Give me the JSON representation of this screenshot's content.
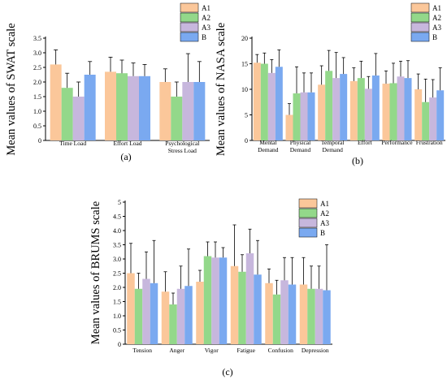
{
  "colors": {
    "A1": "#fbc79a",
    "A2": "#93d88a",
    "A3": "#c7b7dd",
    "B": "#7aa9f0",
    "axis": "#000000",
    "errorbar": "#000000"
  },
  "chart_data": [
    {
      "type": "bar",
      "panel": "(a)",
      "ylabel": "Mean values of  SWAT scale",
      "ylim": [
        0,
        3.5
      ],
      "yticks": [
        "0",
        "0.5",
        "1.0",
        "1.5",
        "2.0",
        "2.5",
        "3.0",
        "3.5"
      ],
      "categories": [
        "Time Load",
        "Effort Load",
        "Psychological\nStress Load"
      ],
      "legend": [
        "A1",
        "A2",
        "A3",
        "B"
      ],
      "legend_position": "top-right",
      "grid": false,
      "series": [
        {
          "name": "A1",
          "values": [
            2.6,
            2.35,
            2.0
          ],
          "errors": [
            0.5,
            0.5,
            0.45
          ]
        },
        {
          "name": "A2",
          "values": [
            1.8,
            2.3,
            1.5
          ],
          "errors": [
            0.5,
            0.45,
            0.5
          ]
        },
        {
          "name": "A3",
          "values": [
            1.5,
            2.2,
            2.0
          ],
          "errors": [
            0.5,
            0.45,
            0.97
          ]
        },
        {
          "name": "B",
          "values": [
            2.25,
            2.2,
            2.0
          ],
          "errors": [
            0.45,
            0.4,
            0.7
          ]
        }
      ]
    },
    {
      "type": "bar",
      "panel": "(b)",
      "ylabel": "Mean values of  NASA scale",
      "ylim": [
        0,
        20
      ],
      "yticks": [
        "0",
        "5",
        "10",
        "15",
        "20"
      ],
      "categories": [
        "Mental\nDemand",
        "Physical\nDemand",
        "Temporal\nDemand",
        "Effort",
        "Performance",
        "Frustration"
      ],
      "legend": [
        "A1",
        "A2",
        "A3",
        "B"
      ],
      "legend_position": "top-right",
      "grid": false,
      "series": [
        {
          "name": "A1",
          "values": [
            15.2,
            5.0,
            10.9,
            11.6,
            11.1,
            10.0
          ],
          "errors": [
            1.6,
            2.2,
            3.7,
            2.6,
            2.5,
            3.0
          ]
        },
        {
          "name": "A2",
          "values": [
            15.0,
            9.2,
            13.6,
            12.2,
            11.2,
            7.5
          ],
          "errors": [
            2.1,
            5.2,
            4.0,
            3.3,
            3.9,
            4.5
          ]
        },
        {
          "name": "A3",
          "values": [
            13.2,
            9.4,
            12.2,
            10.1,
            12.5,
            8.4
          ],
          "errors": [
            2.6,
            3.8,
            5.0,
            2.4,
            3.0,
            3.5
          ]
        },
        {
          "name": "B",
          "values": [
            14.4,
            9.4,
            13.0,
            12.7,
            12.2,
            9.8
          ],
          "errors": [
            3.3,
            3.8,
            3.2,
            4.3,
            3.4,
            4.4
          ]
        }
      ]
    },
    {
      "type": "bar",
      "panel": "(c)",
      "ylabel": "Mean values of  BRUMS scale",
      "ylim": [
        0,
        5
      ],
      "yticks": [
        "0",
        "0.5",
        "1.0",
        "1.5",
        "2.0",
        "2.5",
        "3.0",
        "3.5",
        "4.0",
        "4.5",
        "5"
      ],
      "categories": [
        "Tension",
        "Anger",
        "Vigor",
        "Fatigue",
        "Confusion",
        "Depression"
      ],
      "legend": [
        "A1",
        "A2",
        "A3",
        "B"
      ],
      "legend_position": "top-right",
      "grid": false,
      "series": [
        {
          "name": "A1",
          "values": [
            2.5,
            1.85,
            2.2,
            2.75,
            2.15,
            2.1
          ],
          "errors": [
            1.05,
            0.7,
            0.4,
            1.45,
            0.5,
            0.95
          ]
        },
        {
          "name": "A2",
          "values": [
            1.95,
            1.4,
            3.1,
            2.55,
            1.75,
            1.95
          ],
          "errors": [
            0.55,
            0.4,
            0.5,
            0.6,
            0.5,
            0.8
          ]
        },
        {
          "name": "A3",
          "values": [
            2.3,
            1.95,
            3.05,
            3.2,
            2.25,
            1.95
          ],
          "errors": [
            0.95,
            0.8,
            0.55,
            0.85,
            0.8,
            0.8
          ]
        },
        {
          "name": "B",
          "values": [
            2.15,
            2.05,
            3.05,
            2.45,
            2.1,
            1.9
          ],
          "errors": [
            1.5,
            1.3,
            0.35,
            1.2,
            0.95,
            1.6
          ]
        }
      ]
    }
  ]
}
